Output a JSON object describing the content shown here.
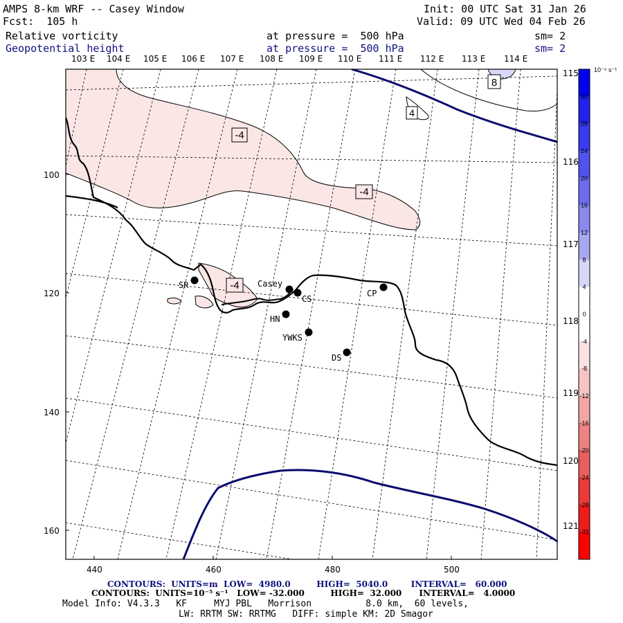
{
  "header": {
    "title": "AMPS 8-km WRF -- Casey Window",
    "fcst": "Fcst:  105 h",
    "init": "Init: 00 UTC Sat 31 Jan 26",
    "valid": "Valid: 09 UTC Wed 04 Feb 26",
    "field1": {
      "name": "Relative vorticity",
      "level": "at pressure =  500 hPa",
      "sm": "sm= 2"
    },
    "field2": {
      "name": "Geopotential height",
      "level": "at pressure =  500 hPa",
      "sm": "sm= 2"
    }
  },
  "map": {
    "lon_top_labels": [
      "103 E",
      "104 E",
      "105 E",
      "106 E",
      "107 E",
      "108 E",
      "109 E",
      "110 E",
      "111 E",
      "112 E",
      "113 E",
      "114 E"
    ],
    "lon_right_labels": [
      "115 E",
      "116 E",
      "117 E",
      "118 E",
      "119 E",
      "120 E",
      "121 E"
    ],
    "x_ticks": [
      "440",
      "460",
      "480",
      "500"
    ],
    "y_ticks": [
      "100",
      "120",
      "140",
      "160"
    ],
    "contour_labels": [
      "-4",
      "-4",
      "-4",
      "4",
      "8"
    ],
    "stations": [
      "SR",
      "Casey",
      "CS",
      "CP",
      "HN",
      "YWKS",
      "DS"
    ],
    "colors": {
      "coast": "#000000",
      "height_contour": "#0a0a6e",
      "neg_fill": "#fbe6e6"
    }
  },
  "colorbar": {
    "unit": "10⁻⁵ s⁻¹",
    "ticks": [
      "32",
      "28",
      "24",
      "20",
      "16",
      "12",
      "8",
      "4",
      "0",
      "-4",
      "-8",
      "-12",
      "-16",
      "-20",
      "-24",
      "-28",
      "-32"
    ],
    "colors": [
      "#0000ee",
      "#2222ee",
      "#3a3aee",
      "#5252ee",
      "#6c6cee",
      "#8a8aee",
      "#a8a8f2",
      "#d6d6f8",
      "#ffffff",
      "#ffffff",
      "#fae2e2",
      "#f6c4c4",
      "#f2a6a6",
      "#ee8282",
      "#ea5e5e",
      "#ec3a3a",
      "#ee1c1c",
      "#ff0000"
    ]
  },
  "footer": {
    "contours1": "CONTOURS:  UNITS=m  LOW=  4980.0         HIGH=  5040.0        INTERVAL=   60.000",
    "contours2": "CONTOURS:  UNITS=10⁻⁵ s⁻¹   LOW= -32.000         HIGH=  32.000      INTERVAL=   4.0000",
    "model1": "Model Info: V4.3.3   KF     MYJ PBL   Morrison          8.0 km,  60 levels,",
    "model2": "LW: RRTM SW: RRTMG   DIFF: simple KM: 2D Smagor"
  }
}
